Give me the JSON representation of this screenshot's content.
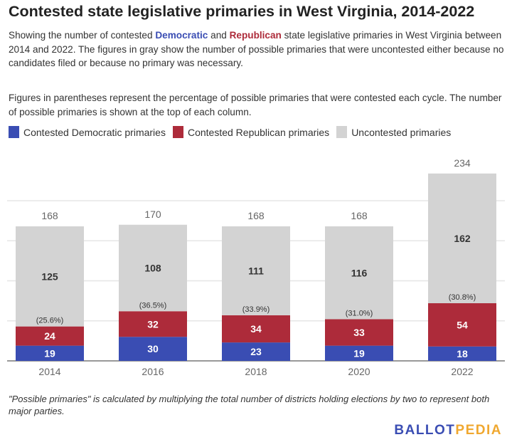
{
  "title": "Contested state legislative primaries in West Virginia, 2014-2022",
  "description": {
    "p1_a": "Showing the number of contested ",
    "p1_dem": "Democratic",
    "p1_b": " and ",
    "p1_rep": "Republican",
    "p1_c": " state legislative primaries in West Virginia between 2014 and 2022. The figures in gray show the number of possible primaries that were uncontested either because no candidates filed or because no primary was necessary.",
    "p2": "Figures in parentheses represent the percentage of possible primaries that were contested each cycle. The number of possible primaries is shown at the top of each column."
  },
  "footnote": "\"Possible primaries\" is calculated by multiplying the total number of districts holding elections by two to represent both major parties.",
  "logo": {
    "part1": "BALLOT",
    "part2": "PEDIA",
    "color1": "#3a4db3",
    "color2": "#f0a830"
  },
  "chart_data": {
    "type": "bar",
    "stacked": true,
    "categories": [
      "2014",
      "2016",
      "2018",
      "2020",
      "2022"
    ],
    "series": [
      {
        "name": "Contested Democratic primaries",
        "color": "#3a4db3",
        "values": [
          19,
          30,
          23,
          19,
          18
        ]
      },
      {
        "name": "Contested Republican primaries",
        "color": "#ad2b3a",
        "values": [
          24,
          32,
          34,
          33,
          54
        ]
      },
      {
        "name": "Uncontested primaries",
        "color": "#d3d3d3",
        "values": [
          125,
          108,
          111,
          116,
          162
        ]
      }
    ],
    "totals": [
      "168",
      "170",
      "168",
      "168",
      "234"
    ],
    "percent_labels": [
      "(25.6%)",
      "(36.5%)",
      "(33.9%)",
      "(31.0%)",
      "(30.8%)"
    ],
    "ylim": [
      0,
      250
    ],
    "grid": true,
    "legend": "top-left"
  }
}
